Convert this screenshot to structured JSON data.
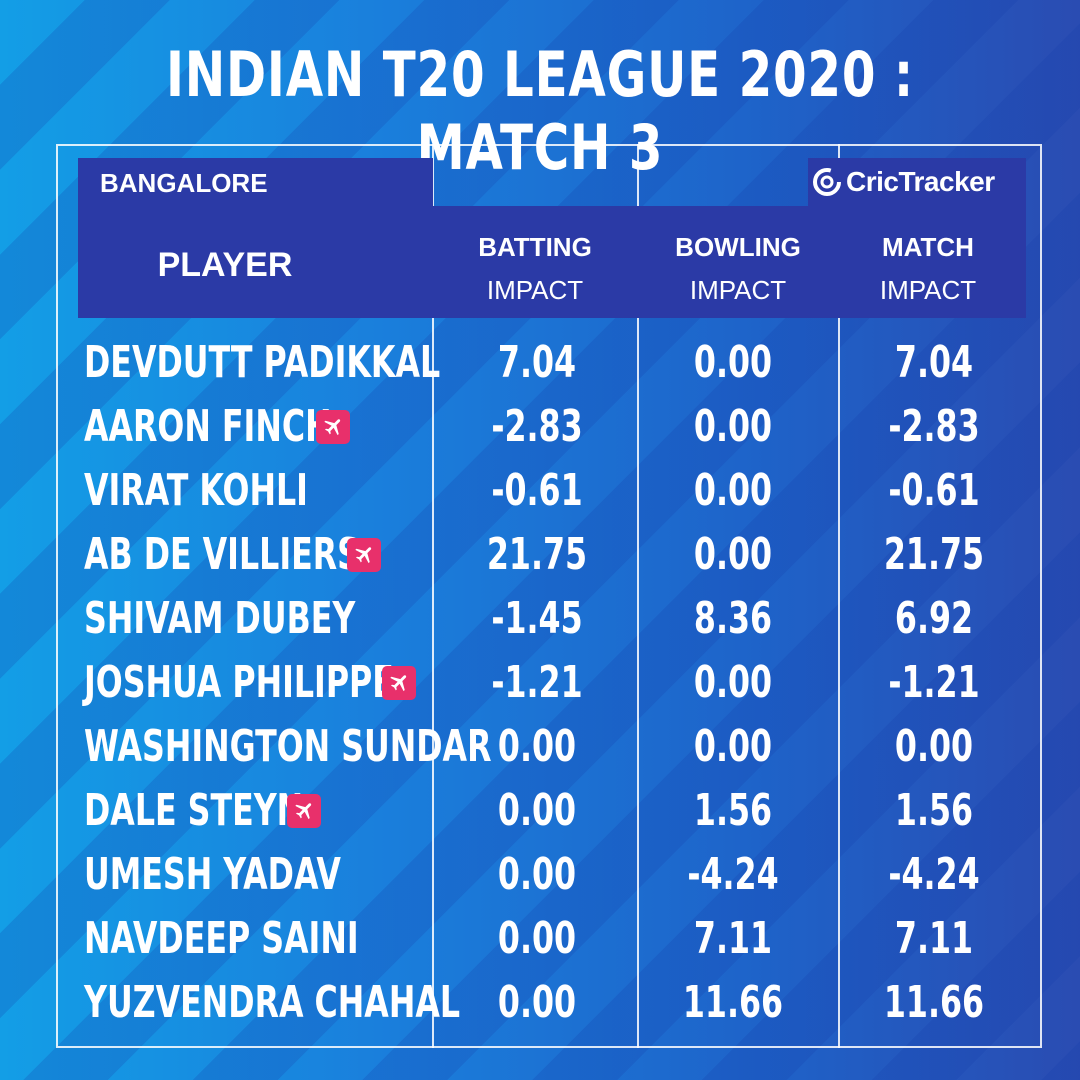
{
  "title": "INDIAN T20 LEAGUE 2020  :  MATCH 3",
  "team": "BANGALORE",
  "brand": "CricTracker",
  "headers": {
    "player": "PLAYER",
    "batting_line1": "BATTING",
    "batting_line2": "IMPACT",
    "bowling_line1": "BOWLING",
    "bowling_line2": "IMPACT",
    "match_line1": "MATCH",
    "match_line2": "IMPACT"
  },
  "colors": {
    "header_bar": "#2b3aa6",
    "overseas_badge": "#e8306b",
    "text": "#ffffff"
  },
  "rows": [
    {
      "name": "DEVDUTT PADIKKAL",
      "overseas": false,
      "batting": "7.04",
      "bowling": "0.00",
      "match": "7.04"
    },
    {
      "name": "AARON FINCH",
      "overseas": true,
      "batting": "-2.83",
      "bowling": "0.00",
      "match": "-2.83"
    },
    {
      "name": "VIRAT KOHLI",
      "overseas": false,
      "batting": "-0.61",
      "bowling": "0.00",
      "match": "-0.61"
    },
    {
      "name": "AB DE VILLIERS",
      "overseas": true,
      "batting": "21.75",
      "bowling": "0.00",
      "match": "21.75"
    },
    {
      "name": "SHIVAM DUBEY",
      "overseas": false,
      "batting": "-1.45",
      "bowling": "8.36",
      "match": "6.92"
    },
    {
      "name": "JOSHUA PHILIPPE",
      "overseas": true,
      "batting": "-1.21",
      "bowling": "0.00",
      "match": "-1.21"
    },
    {
      "name": "WASHINGTON SUNDAR",
      "overseas": false,
      "batting": "0.00",
      "bowling": "0.00",
      "match": "0.00"
    },
    {
      "name": "DALE STEYN",
      "overseas": true,
      "batting": "0.00",
      "bowling": "1.56",
      "match": "1.56"
    },
    {
      "name": "UMESH YADAV",
      "overseas": false,
      "batting": "0.00",
      "bowling": "-4.24",
      "match": "-4.24"
    },
    {
      "name": "NAVDEEP SAINI",
      "overseas": false,
      "batting": "0.00",
      "bowling": "7.11",
      "match": "7.11"
    },
    {
      "name": "YUZVENDRA CHAHAL",
      "overseas": false,
      "batting": "0.00",
      "bowling": "11.66",
      "match": "11.66"
    }
  ]
}
